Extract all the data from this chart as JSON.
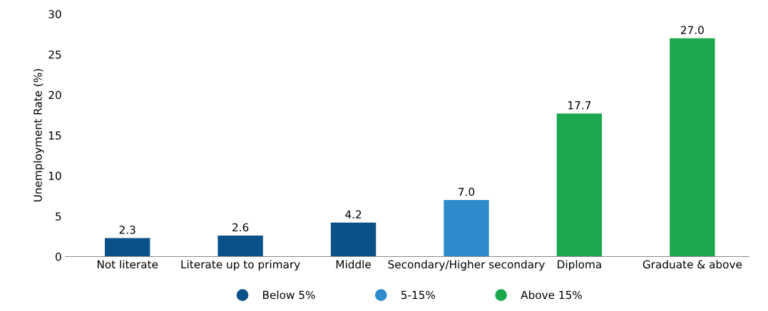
{
  "chart_data": {
    "type": "bar",
    "ylabel": "Unemployment Rate (%)",
    "categories": [
      "Not literate",
      "Literate up to primary",
      "Middle",
      "Secondary/Higher secondary",
      "Diploma",
      "Graduate & above"
    ],
    "series": [
      {
        "name": "Below 5%",
        "color": "#0b5189",
        "values": [
          2.3,
          2.6,
          4.2,
          null,
          null,
          null
        ],
        "value_labels": [
          "2.3",
          "2.6",
          "4.2",
          null,
          null,
          null
        ]
      },
      {
        "name": "5-15%",
        "color": "#2e8bcc",
        "values": [
          null,
          null,
          null,
          7.0,
          null,
          null
        ],
        "value_labels": [
          null,
          null,
          null,
          "7.0",
          null,
          null
        ]
      },
      {
        "name": "Above 15%",
        "color": "#1ea84e",
        "values": [
          null,
          null,
          null,
          null,
          17.7,
          27.0
        ],
        "value_labels": [
          null,
          null,
          null,
          null,
          "17.7",
          "27.0"
        ]
      }
    ],
    "ylim": [
      0,
      30
    ],
    "yticks": [
      0,
      5,
      10,
      15,
      20,
      25,
      30
    ],
    "grid": false,
    "legend": "bottom"
  }
}
